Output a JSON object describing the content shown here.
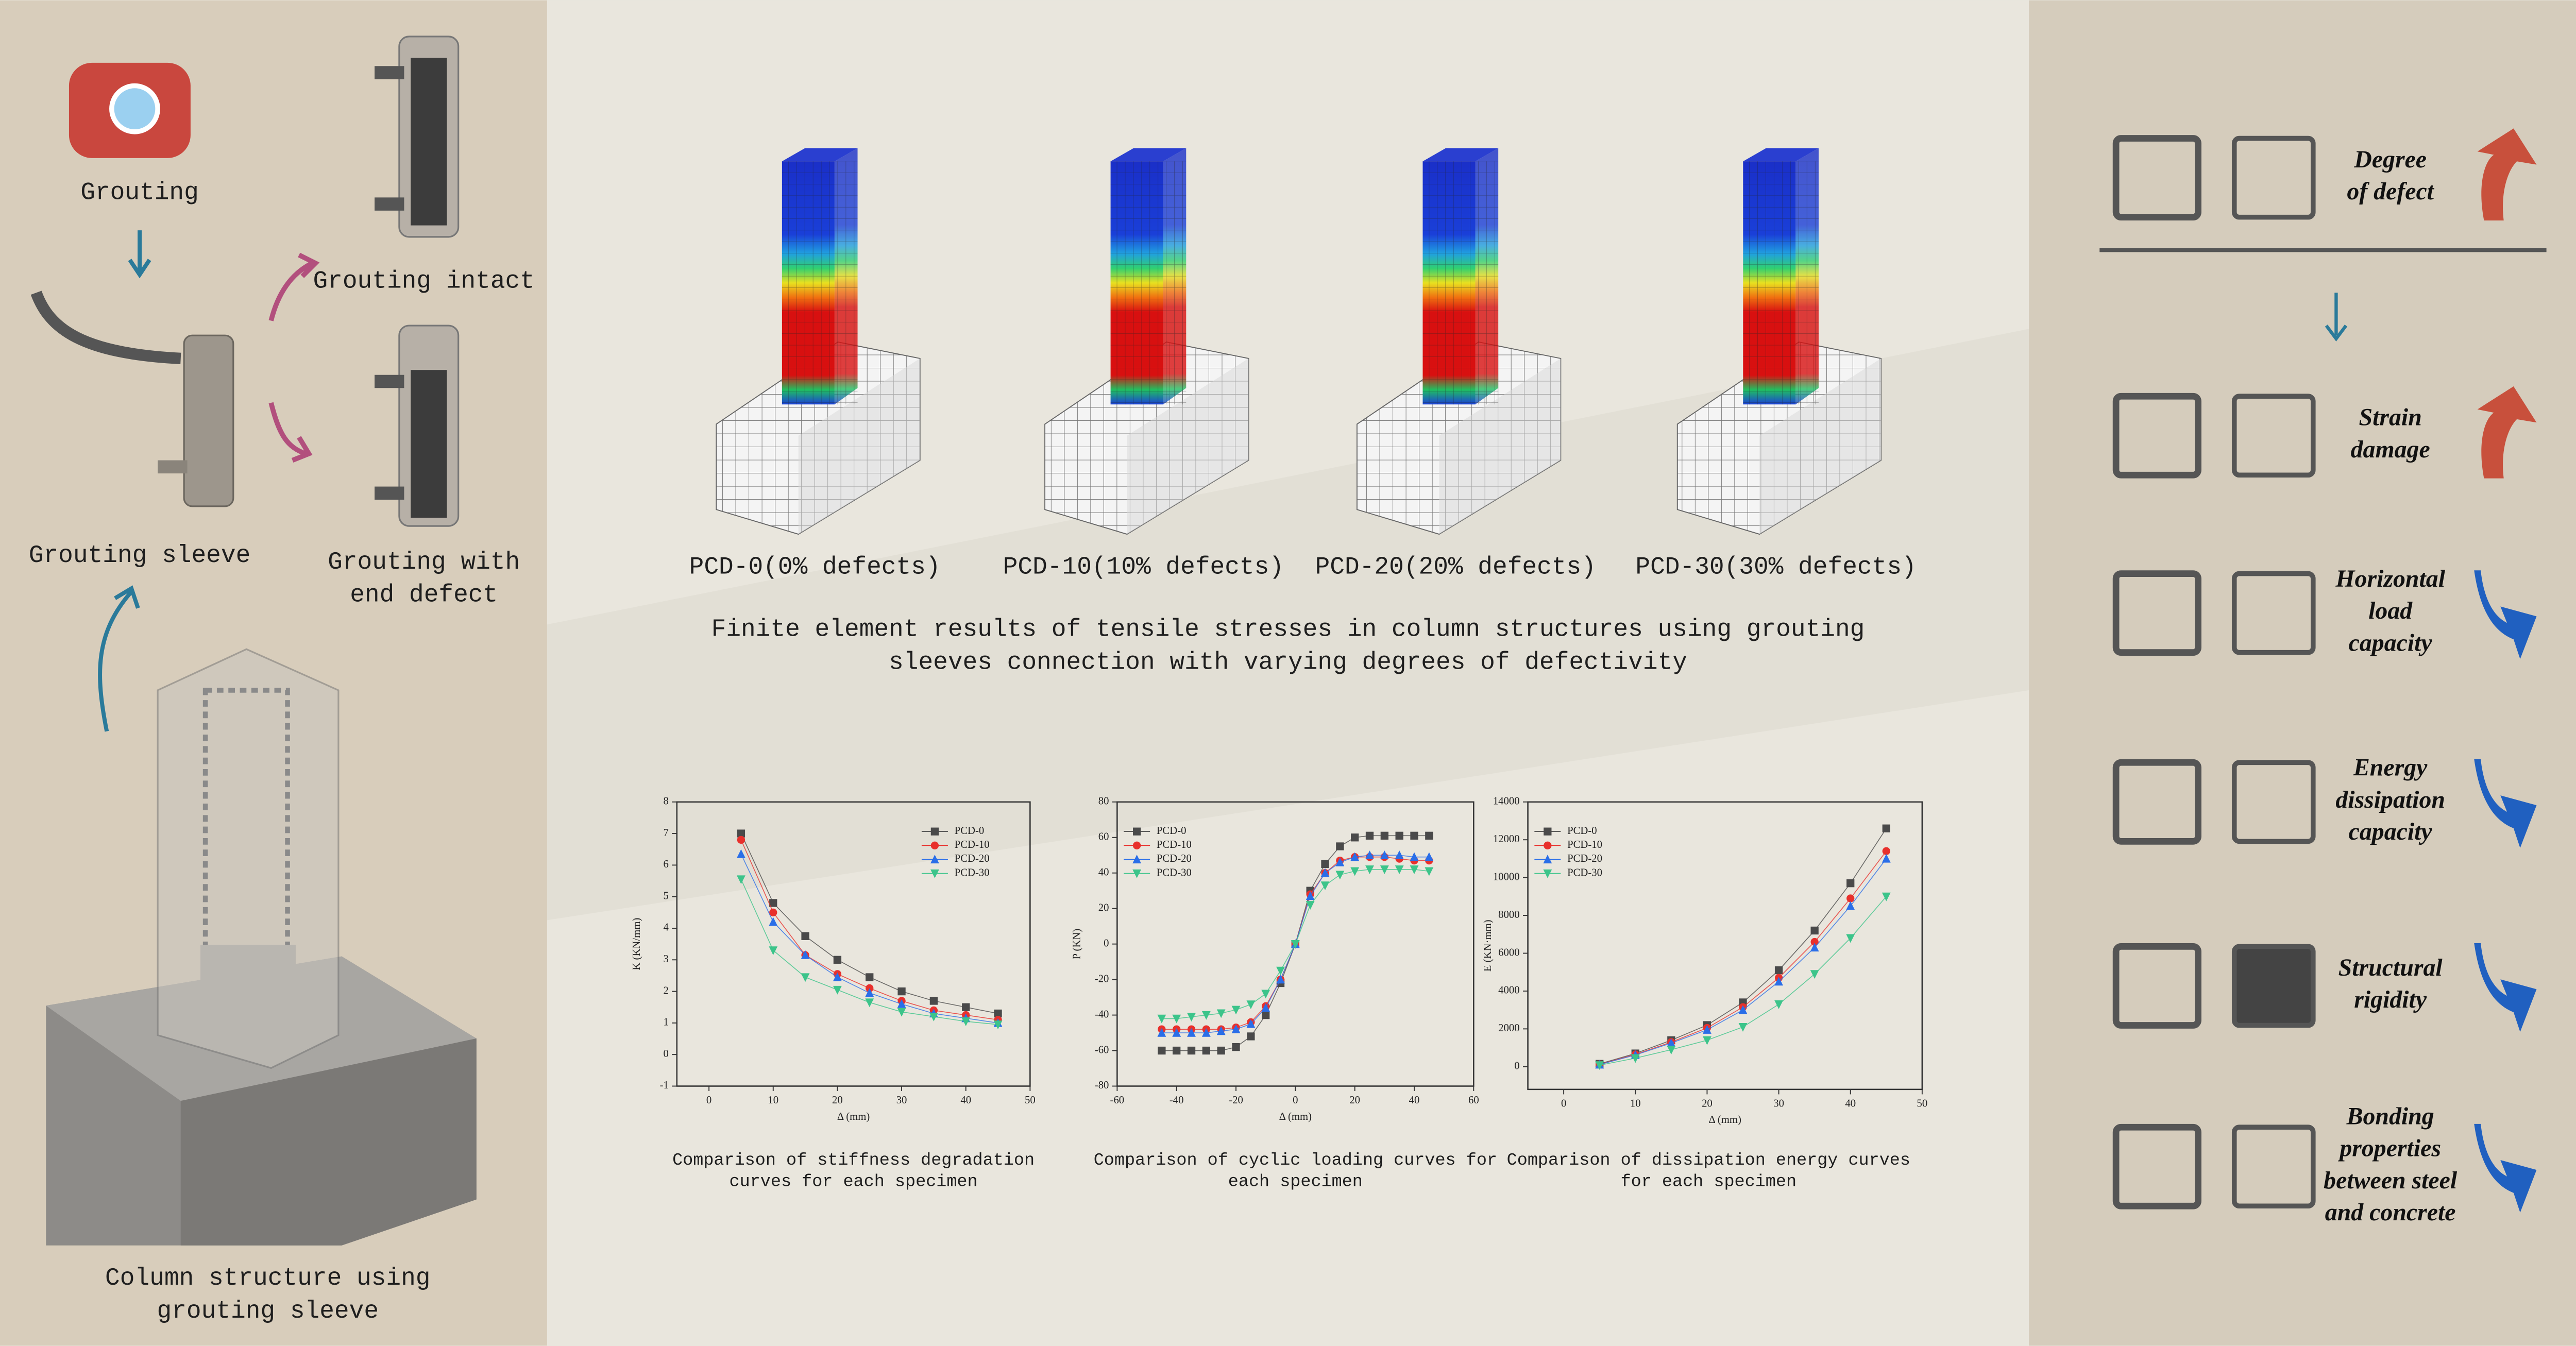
{
  "left_panel": {
    "grouting": "Grouting",
    "grouting_intact": "Grouting intact",
    "grouting_sleeve": "Grouting sleeve",
    "end_defect": {
      "lines": [
        "Grouting with",
        "end defect"
      ]
    },
    "column": {
      "lines": [
        "Column structure using",
        "grouting sleeve"
      ]
    }
  },
  "fe_results": {
    "labels": [
      "PCD-0(0% defects)",
      "PCD-10(10% defects)",
      "PCD-20(20% defects)",
      "PCD-30(30% defects)"
    ],
    "caption": {
      "lines": [
        "Finite element results of tensile stresses in column structures using grouting",
        "sleeves connection with varying degrees of defectivity"
      ]
    }
  },
  "chart_data": [
    {
      "type": "line",
      "caption": {
        "lines": [
          "Comparison of stiffness degradation",
          "curves for each specimen"
        ]
      },
      "x_label": "Δ (mm)",
      "y_label": "K (KN/mm)",
      "legend": "upper right",
      "x": [
        5,
        10,
        15,
        20,
        25,
        30,
        35,
        40,
        45
      ],
      "series": [
        {
          "name": "PCD-0",
          "color": "#4a4a4a",
          "marker": "square",
          "values": [
            7.0,
            4.8,
            3.75,
            3.0,
            2.45,
            2.0,
            1.7,
            1.5,
            1.3
          ]
        },
        {
          "name": "PCD-10",
          "color": "#e8302c",
          "marker": "circle",
          "values": [
            6.8,
            4.5,
            3.15,
            2.55,
            2.1,
            1.7,
            1.4,
            1.25,
            1.1
          ]
        },
        {
          "name": "PCD-20",
          "color": "#2a6ee8",
          "marker": "triangle-up",
          "values": [
            6.35,
            4.2,
            3.15,
            2.45,
            1.95,
            1.6,
            1.3,
            1.15,
            1.0
          ]
        },
        {
          "name": "PCD-30",
          "color": "#3cc48a",
          "marker": "triangle-down",
          "values": [
            5.55,
            3.3,
            2.45,
            2.05,
            1.65,
            1.35,
            1.2,
            1.05,
            0.95
          ]
        }
      ],
      "xlim": [
        -5,
        50
      ],
      "ylim": [
        -1,
        8
      ],
      "xticks": [
        0,
        10,
        20,
        30,
        40,
        50
      ],
      "yticks": [
        -1,
        0,
        1,
        2,
        3,
        4,
        5,
        6,
        7,
        8
      ]
    },
    {
      "type": "line",
      "caption": {
        "lines": [
          "Comparison of cyclic loading curves for",
          "each specimen"
        ]
      },
      "x_label": "Δ (mm)",
      "y_label": "P (KN)",
      "legend": "upper left",
      "x": [
        -45,
        -40,
        -35,
        -30,
        -25,
        -20,
        -15,
        -10,
        -5,
        0,
        5,
        10,
        15,
        20,
        25,
        30,
        35,
        40,
        45
      ],
      "series": [
        {
          "name": "PCD-0",
          "color": "#4a4a4a",
          "marker": "square",
          "values": [
            -60,
            -60,
            -60,
            -60,
            -60,
            -58,
            -52,
            -40,
            -22,
            0,
            30,
            45,
            55,
            60,
            61,
            61,
            61,
            61,
            61
          ]
        },
        {
          "name": "PCD-10",
          "color": "#e8302c",
          "marker": "circle",
          "values": [
            -48,
            -48,
            -48,
            -48,
            -48,
            -47,
            -44,
            -35,
            -20,
            0,
            28,
            40,
            47,
            49,
            49,
            49,
            48,
            47,
            47
          ]
        },
        {
          "name": "PCD-20",
          "color": "#2a6ee8",
          "marker": "triangle-up",
          "values": [
            -50,
            -50,
            -50,
            -50,
            -49,
            -48,
            -45,
            -36,
            -20,
            0,
            27,
            40,
            46,
            49,
            50,
            50,
            50,
            49,
            49
          ]
        },
        {
          "name": "PCD-30",
          "color": "#3cc48a",
          "marker": "triangle-down",
          "values": [
            -42,
            -42,
            -41,
            -40,
            -39,
            -37,
            -34,
            -28,
            -15,
            0,
            22,
            33,
            39,
            41,
            42,
            42,
            42,
            42,
            41
          ]
        }
      ],
      "xlim": [
        -60,
        60
      ],
      "ylim": [
        -80,
        80
      ],
      "xticks": [
        -60,
        -40,
        -20,
        0,
        20,
        40,
        60
      ],
      "yticks": [
        -80,
        -60,
        -40,
        -20,
        0,
        20,
        40,
        60,
        80
      ]
    },
    {
      "type": "line",
      "caption": {
        "lines": [
          "Comparison of dissipation energy curves",
          "for each specimen"
        ]
      },
      "x_label": "Δ (mm)",
      "y_label": "E (KN·mm)",
      "legend": "upper left",
      "x": [
        5,
        10,
        15,
        20,
        25,
        30,
        35,
        40,
        45
      ],
      "series": [
        {
          "name": "PCD-0",
          "color": "#4a4a4a",
          "marker": "square",
          "values": [
            150,
            700,
            1400,
            2200,
            3400,
            5100,
            7200,
            9700,
            12600
          ]
        },
        {
          "name": "PCD-10",
          "color": "#e8302c",
          "marker": "circle",
          "values": [
            120,
            650,
            1300,
            2050,
            3150,
            4700,
            6600,
            8900,
            11400
          ]
        },
        {
          "name": "PCD-20",
          "color": "#2a6ee8",
          "marker": "triangle-up",
          "values": [
            110,
            620,
            1250,
            1950,
            3000,
            4500,
            6300,
            8500,
            11000
          ]
        },
        {
          "name": "PCD-30",
          "color": "#3cc48a",
          "marker": "triangle-down",
          "values": [
            80,
            450,
            900,
            1400,
            2100,
            3300,
            4900,
            6800,
            9000
          ]
        }
      ],
      "xlim": [
        -5,
        50
      ],
      "ylim": [
        -1200,
        14000
      ],
      "xticks": [
        0,
        10,
        20,
        30,
        40,
        50
      ],
      "yticks": [
        0,
        2000,
        4000,
        6000,
        8000,
        10000,
        12000,
        14000
      ]
    }
  ],
  "effects": [
    {
      "lines": [
        "Degree",
        "of defect"
      ]
    },
    {
      "lines": [
        "Strain",
        "damage"
      ]
    },
    {
      "lines": [
        "Horizontal",
        "load",
        "capacity"
      ]
    },
    {
      "lines": [
        "Energy",
        "dissipation",
        "capacity"
      ]
    },
    {
      "lines": [
        "Structural",
        "rigidity"
      ]
    },
    {
      "lines": [
        "Bonding",
        "properties",
        "between steel",
        "and concrete"
      ]
    }
  ]
}
